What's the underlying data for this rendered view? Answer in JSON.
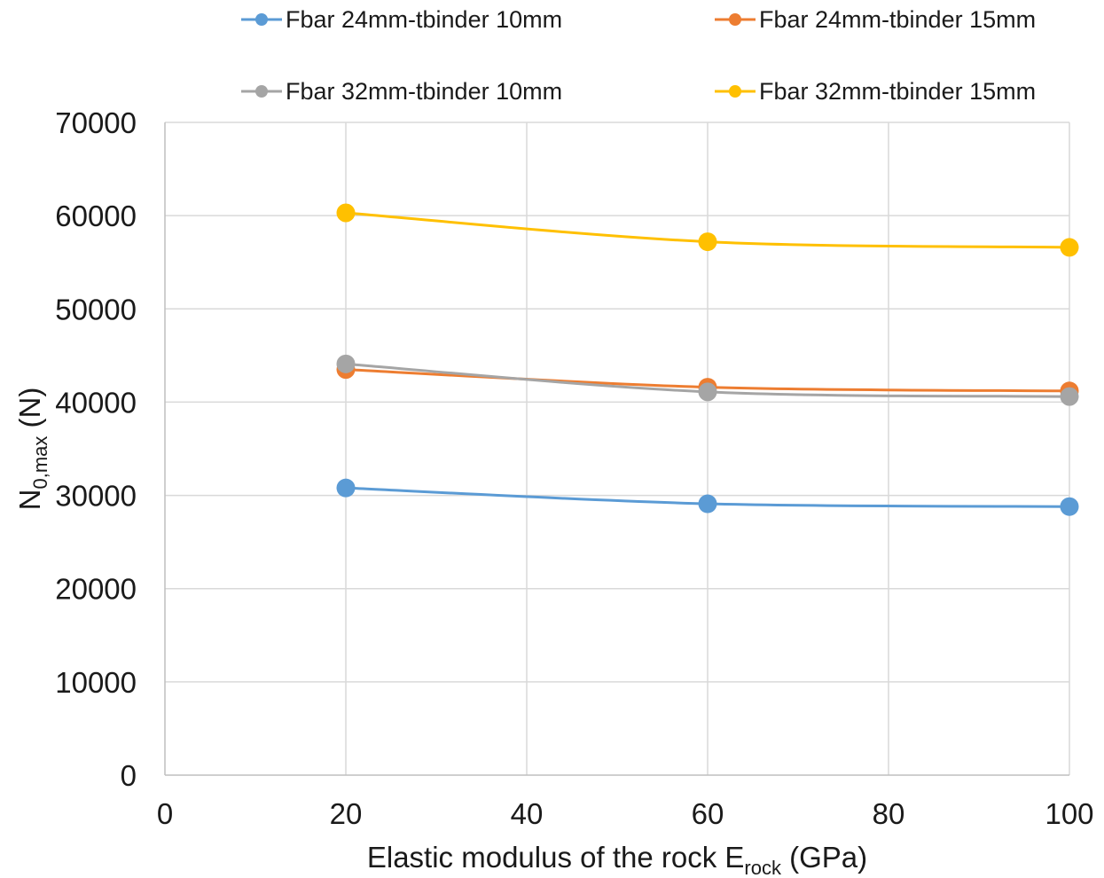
{
  "chart_data": {
    "type": "line",
    "title": "",
    "xlabel": {
      "main": "Elastic modulus  of the rock E",
      "sub": "rock",
      "suffix": " (GPa)"
    },
    "ylabel": {
      "main": "N",
      "sub": "0,max",
      "suffix": " (N)"
    },
    "xlim": [
      0,
      100
    ],
    "ylim": [
      0,
      70000
    ],
    "xticks": [
      "0",
      "20",
      "40",
      "60",
      "80",
      "100"
    ],
    "yticks": [
      "0",
      "10000",
      "20000",
      "30000",
      "40000",
      "50000",
      "60000",
      "70000"
    ],
    "grid": true,
    "legend_position": "top",
    "series": [
      {
        "name": "Fbar 24mm-tbinder 10mm",
        "color": "#5b9bd5",
        "x": [
          20,
          60,
          100
        ],
        "y": [
          30800,
          29100,
          28800
        ]
      },
      {
        "name": "Fbar 24mm-tbinder 15mm",
        "color": "#ed7d31",
        "x": [
          20,
          60,
          100
        ],
        "y": [
          43500,
          41600,
          41200
        ]
      },
      {
        "name": "Fbar 32mm-tbinder 10mm",
        "color": "#a5a5a5",
        "x": [
          20,
          60,
          100
        ],
        "y": [
          44100,
          41100,
          40600
        ]
      },
      {
        "name": "Fbar 32mm-tbinder 15mm",
        "color": "#ffc000",
        "x": [
          20,
          60,
          100
        ],
        "y": [
          60300,
          57200,
          56600
        ]
      }
    ]
  }
}
